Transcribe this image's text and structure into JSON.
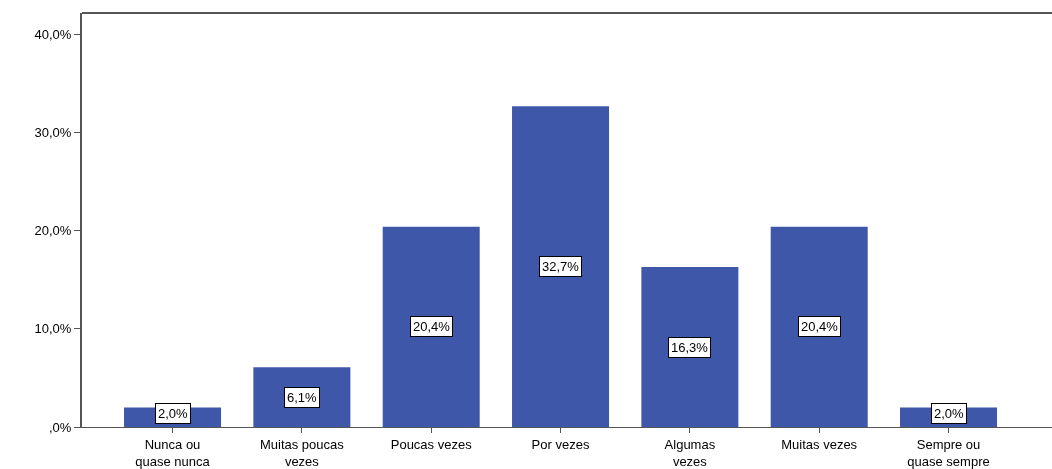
{
  "chart_data": {
    "type": "bar",
    "categories": [
      "Nunca ou\nquase nunca",
      "Muitas poucas\nvezes",
      "Poucas vezes",
      "Por vezes",
      "Algumas\nvezes",
      "Muitas vezes",
      "Sempre ou\nquase sempre"
    ],
    "values": [
      2.0,
      6.1,
      20.4,
      32.7,
      16.3,
      20.4,
      2.0
    ],
    "value_labels": [
      "2,0%",
      "6,1%",
      "20,4%",
      "32,7%",
      "16,3%",
      "20,4%",
      "2,0%"
    ],
    "color": "#3f57a8",
    "ylim": [
      0,
      42.2
    ],
    "yticks": [
      {
        "value": 0,
        "label": ",0%"
      },
      {
        "value": 10,
        "label": "10,0%"
      },
      {
        "value": 20,
        "label": "20,0%"
      },
      {
        "value": 30,
        "label": "30,0%"
      },
      {
        "value": 40,
        "label": "40,0%"
      }
    ]
  }
}
